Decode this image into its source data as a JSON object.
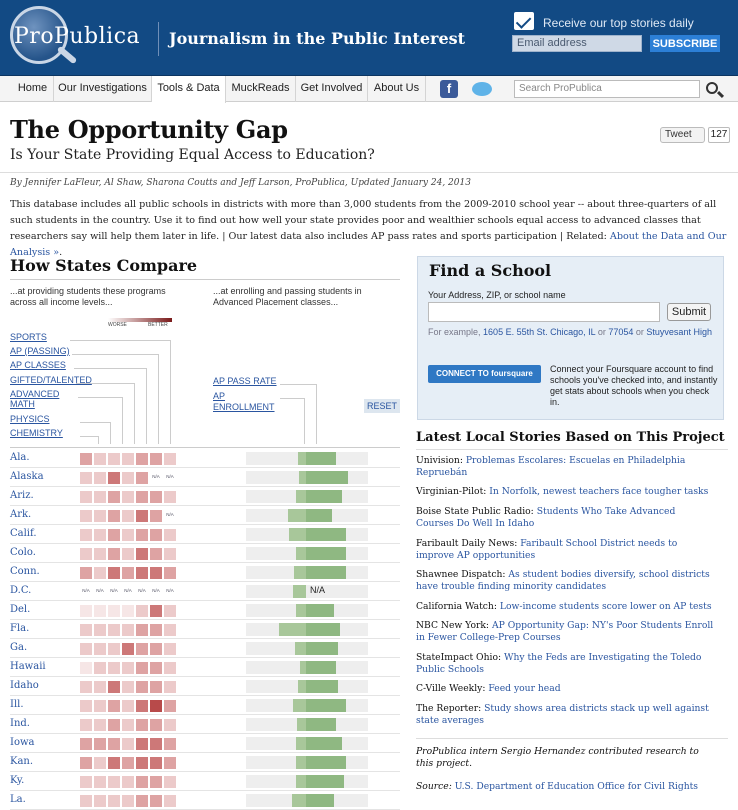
{
  "header": {
    "logo": "ProPublica",
    "tagline": "Journalism in the Public Interest",
    "newsletter_label": "Receive our top stories daily",
    "email_placeholder": "Email address",
    "subscribe_label": "SUBSCRIBE"
  },
  "nav": {
    "items": [
      "Home",
      "Our Investigations",
      "Tools & Data",
      "MuckReads",
      "Get Involved",
      "About Us"
    ],
    "active": "Tools & Data",
    "search_placeholder": "Search ProPublica"
  },
  "article": {
    "title": "The Opportunity Gap",
    "subtitle": "Is Your State Providing Equal Access to Education?",
    "tweet_label": "Tweet",
    "tweet_count": "127",
    "byline": "By Jennifer LaFleur, Al Shaw, Sharona Coutts and Jeff Larson, ProPublica, Updated January 24, 2013",
    "intro": "This database includes all public schools in districts with more than 3,000 students from the 2009-2010 school year -- about three-quarters of all such students in the country. Use it to find out how well your state provides poor and wealthier schools equal access to advanced classes that researchers say will help them later in life. | Our latest data also includes AP pass rates and sports participation | Related: ",
    "intro_link": "About the Data and Our Analysis »",
    "intro_end": "."
  },
  "compare": {
    "title": "How States Compare",
    "col1_intro": "...at providing students these programs across all income levels...",
    "col2_intro": "...at enrolling and passing students in Advanced Placement classes...",
    "scale_worse": "WORSE",
    "scale_better": "BETTER",
    "legend_left": [
      "SPORTS",
      "AP (PASSING)",
      "AP CLASSES",
      "GIFTED/TALENTED",
      "ADVANCED MATH",
      "PHYSICS",
      "CHEMISTRY"
    ],
    "legend_right": [
      "AP PASS RATE",
      "AP ENROLLMENT"
    ],
    "reset_label": "RESET",
    "na_label": "N/A",
    "states": [
      {
        "name": "Ala.",
        "cells": [
          2,
          1,
          1,
          1,
          2,
          2,
          1
        ],
        "pass": 0.08,
        "enroll": 0.3
      },
      {
        "name": "Alaska",
        "cells": [
          1,
          1,
          3,
          1,
          2,
          -1,
          -1
        ],
        "pass": 0.07,
        "enroll": 0.42
      },
      {
        "name": "Ariz.",
        "cells": [
          1,
          1,
          2,
          1,
          2,
          2,
          1
        ],
        "pass": 0.1,
        "enroll": 0.36
      },
      {
        "name": "Ark.",
        "cells": [
          1,
          1,
          2,
          1,
          3,
          2,
          -1
        ],
        "pass": 0.18,
        "enroll": 0.26
      },
      {
        "name": "Calif.",
        "cells": [
          1,
          1,
          2,
          1,
          2,
          2,
          1
        ],
        "pass": 0.17,
        "enroll": 0.4
      },
      {
        "name": "Colo.",
        "cells": [
          1,
          1,
          2,
          1,
          3,
          2,
          1
        ],
        "pass": 0.1,
        "enroll": 0.4
      },
      {
        "name": "Conn.",
        "cells": [
          2,
          1,
          3,
          2,
          3,
          3,
          2
        ],
        "pass": 0.12,
        "enroll": 0.4
      },
      {
        "name": "D.C.",
        "cells": [
          -1,
          -1,
          -1,
          -1,
          -1,
          -1,
          -1
        ],
        "pass": 0.13,
        "enroll": -1
      },
      {
        "name": "Del.",
        "cells": [
          0,
          0,
          0,
          0,
          1,
          3,
          1
        ],
        "pass": 0.1,
        "enroll": 0.28
      },
      {
        "name": "Fla.",
        "cells": [
          1,
          1,
          1,
          1,
          2,
          2,
          1
        ],
        "pass": 0.27,
        "enroll": 0.34
      },
      {
        "name": "Ga.",
        "cells": [
          1,
          1,
          1,
          3,
          2,
          2,
          1
        ],
        "pass": 0.11,
        "enroll": 0.32
      },
      {
        "name": "Hawaii",
        "cells": [
          0,
          1,
          1,
          1,
          2,
          2,
          1
        ],
        "pass": 0.06,
        "enroll": 0.3
      },
      {
        "name": "Idaho",
        "cells": [
          1,
          1,
          3,
          1,
          2,
          2,
          1
        ],
        "pass": 0.08,
        "enroll": 0.32
      },
      {
        "name": "Ill.",
        "cells": [
          1,
          1,
          2,
          1,
          3,
          4,
          2
        ],
        "pass": 0.13,
        "enroll": 0.4
      },
      {
        "name": "Ind.",
        "cells": [
          1,
          1,
          2,
          1,
          2,
          2,
          1
        ],
        "pass": 0.09,
        "enroll": 0.3
      },
      {
        "name": "Iowa",
        "cells": [
          2,
          2,
          2,
          1,
          3,
          3,
          2
        ],
        "pass": 0.1,
        "enroll": 0.36
      },
      {
        "name": "Kan.",
        "cells": [
          2,
          1,
          3,
          2,
          3,
          3,
          2
        ],
        "pass": 0.1,
        "enroll": 0.4
      },
      {
        "name": "Ky.",
        "cells": [
          1,
          1,
          1,
          1,
          2,
          2,
          1
        ],
        "pass": 0.1,
        "enroll": 0.38
      },
      {
        "name": "La.",
        "cells": [
          1,
          1,
          1,
          1,
          2,
          2,
          1
        ],
        "pass": 0.14,
        "enroll": 0.28
      }
    ]
  },
  "find_school": {
    "title": "Find a School",
    "address_label": "Your Address, ZIP, or school name",
    "submit_label": "Submit",
    "example_prefix": "For example,",
    "example_1": "1605 E. 55th St. Chicago, IL",
    "example_or1": "or",
    "example_2": "77054",
    "example_or2": "or",
    "example_3": "Stuyvesant High",
    "foursquare_button": "CONNECT TO foursquare",
    "foursquare_text": "Connect your Foursquare account to find schools you've checked into, and instantly get stats about schools when you check in."
  },
  "stories": {
    "title": "Latest Local Stories Based on This Project",
    "items": [
      {
        "source": "Univision:",
        "link": "Problemas Escolares: Escuelas en Philadelphia Repruebán"
      },
      {
        "source": "Virginian-Pilot:",
        "link": "In Norfolk, newest teachers face tougher tasks"
      },
      {
        "source": "Boise State Public Radio:",
        "link": "Students Who Take Advanced Courses Do Well In Idaho"
      },
      {
        "source": "Faribault Daily News:",
        "link": "Faribault School District needs to improve AP opportunities"
      },
      {
        "source": "Shawnee Dispatch:",
        "link": "As student bodies diversify, school districts have trouble finding minority candidates"
      },
      {
        "source": "California Watch:",
        "link": "Low-income students score lower on AP tests"
      },
      {
        "source": "NBC New York:",
        "link": "AP Opportunity Gap: NY's Poor Students Enroll in Fewer College-Prep Courses"
      },
      {
        "source": "StateImpact Ohio:",
        "link": "Why the Feds are Investigating the Toledo Public Schools"
      },
      {
        "source": "C-Ville Weekly:",
        "link": "Feed your head"
      },
      {
        "source": "The Reporter:",
        "link": "Study shows area districts stack up well against state averages"
      }
    ],
    "credit": "ProPublica intern Sergio Hernandez contributed research to this project.",
    "source_label": "Source:",
    "source_link": "U.S. Department of Education Office for Civil Rights"
  },
  "colors": {
    "header_bg": "#124a84",
    "link": "#2a55a0",
    "bar": "#a8c79a",
    "cell_scale": [
      "#f6e6e6",
      "#eccaca",
      "#dea3a3",
      "#cd7878",
      "#b84a4a"
    ]
  }
}
